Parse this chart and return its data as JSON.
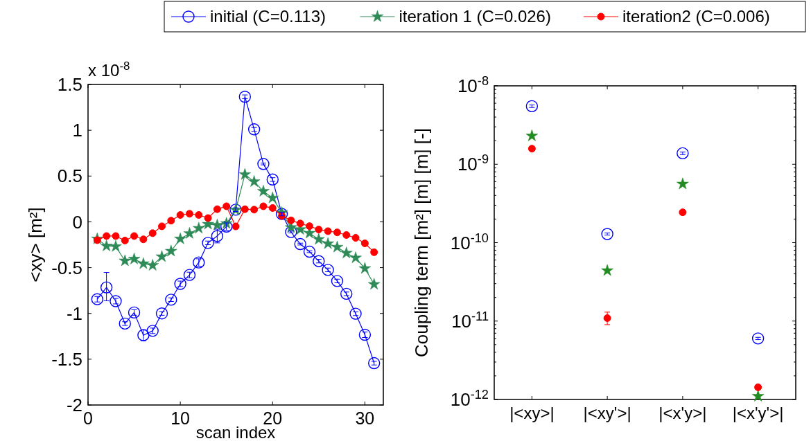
{
  "chart_data": [
    {
      "type": "line",
      "xlabel": "scan index",
      "ylabel": "<xy> [m²]",
      "annotations": [
        "x 10$^{-8}$"
      ],
      "xlim": [
        0,
        32
      ],
      "xticks": [
        0,
        10,
        20,
        30
      ],
      "ylim": [
        -2,
        1.5
      ],
      "yticks": [
        -2,
        -1.5,
        -1,
        -0.5,
        0,
        0.5,
        1,
        1.5
      ],
      "x": [
        1,
        2,
        3,
        4,
        5,
        6,
        7,
        8,
        9,
        10,
        11,
        12,
        13,
        14,
        15,
        16,
        17,
        18,
        19,
        20,
        21,
        22,
        23,
        24,
        25,
        26,
        27,
        28,
        29,
        30,
        31
      ],
      "legend": "top",
      "grid": false,
      "line_style": "solid",
      "series": [
        {
          "name": "initial (C=0.113)",
          "color": "#0000ff",
          "marker": "circle",
          "values": [
            -0.845,
            -0.716,
            -0.866,
            -1.111,
            -0.99,
            -1.238,
            -1.19,
            -1.0,
            -0.85,
            -0.677,
            -0.58,
            -0.444,
            -0.23,
            -0.155,
            -0.052,
            0.133,
            1.366,
            1.01,
            0.632,
            0.462,
            0.086,
            -0.111,
            -0.243,
            -0.326,
            -0.429,
            -0.525,
            -0.646,
            -0.786,
            -1.003,
            -1.233,
            -1.543
          ],
          "errors": [
            0.03,
            [
              -0.863,
              -0.553
            ],
            0.03,
            0.02,
            0.03,
            0.06,
            0.03,
            0.02,
            0.02,
            0.03,
            0.03,
            0.04,
            0.02,
            [
              -0.23,
              -0.08
            ],
            0.04,
            0.02,
            0.02,
            0.02,
            0.01,
            0.02,
            0.02,
            0.01,
            0.01,
            0.01,
            0.02,
            0.02,
            0.02,
            0.02,
            0.02,
            0.03,
            0.02
          ]
        },
        {
          "name": "iteration 1 (C=0.026)",
          "color": "#2e8b57",
          "marker": "star",
          "values": [
            -0.186,
            -0.264,
            -0.269,
            -0.426,
            -0.406,
            -0.457,
            -0.475,
            -0.38,
            -0.32,
            -0.186,
            -0.127,
            -0.07,
            -0.026,
            -0.036,
            -0.018,
            0.13,
            0.517,
            0.439,
            0.334,
            0.261,
            0.099,
            -0.062,
            -0.083,
            -0.124,
            -0.191,
            -0.238,
            -0.276,
            -0.341,
            -0.393,
            -0.509,
            -0.682
          ]
        },
        {
          "name": "iteration2 (C=0.006)",
          "color": "#ff0000",
          "marker": "circle",
          "values": [
            -0.2,
            -0.155,
            -0.155,
            -0.204,
            -0.155,
            -0.191,
            -0.124,
            -0.049,
            0.013,
            0.075,
            0.088,
            0.075,
            0.041,
            0.138,
            0.17,
            -0.05,
            0.138,
            0.133,
            0.17,
            0.151,
            0.065,
            0.016,
            -0.018,
            -0.047,
            -0.084,
            -0.102,
            -0.115,
            -0.144,
            -0.175,
            -0.235,
            -0.332
          ]
        }
      ]
    },
    {
      "type": "scatter",
      "ylabel": "Coupling term [m²] [m] [m] [-]",
      "categories": [
        "|<xy>|",
        "|<xy'>|",
        "|<x'y>|",
        "|<x'y'>|"
      ],
      "log": "y",
      "ylim": [
        1e-12,
        1e-08
      ],
      "yticks": [
        {
          "value": 1e-12,
          "label": "10$^{-12}$"
        },
        {
          "value": 1e-11,
          "label": "10$^{-11}$"
        },
        {
          "value": 1e-10,
          "label": "10$^{-10}$"
        },
        {
          "value": 1e-09,
          "label": "10$^{-9}$"
        },
        {
          "value": 1e-08,
          "label": "10$^{-8}$"
        }
      ],
      "grid": false,
      "series": [
        {
          "color": "#0000ff",
          "marker": "circle",
          "values": [
            5.5e-09,
            1.29e-10,
            1.38e-09,
            6e-12
          ],
          "errors": [
            [
              5.3e-09,
              5.7e-09
            ],
            [
              1.25e-10,
              1.33e-10
            ],
            [
              1.33e-09,
              1.43e-09
            ],
            [
              5.8e-12,
              6.2e-12
            ]
          ]
        },
        {
          "color": "#228b22",
          "marker": "star",
          "values": [
            2.3e-09,
            4.4e-11,
            5.6e-10,
            1.1e-12
          ]
        },
        {
          "color": "#ff0000",
          "marker": "circle",
          "values": [
            1.58e-09,
            1.09e-11,
            2.44e-10,
            1.43e-12
          ],
          "errors": [
            null,
            [
              9e-12,
              1.3e-11
            ],
            null,
            null
          ]
        }
      ]
    }
  ]
}
